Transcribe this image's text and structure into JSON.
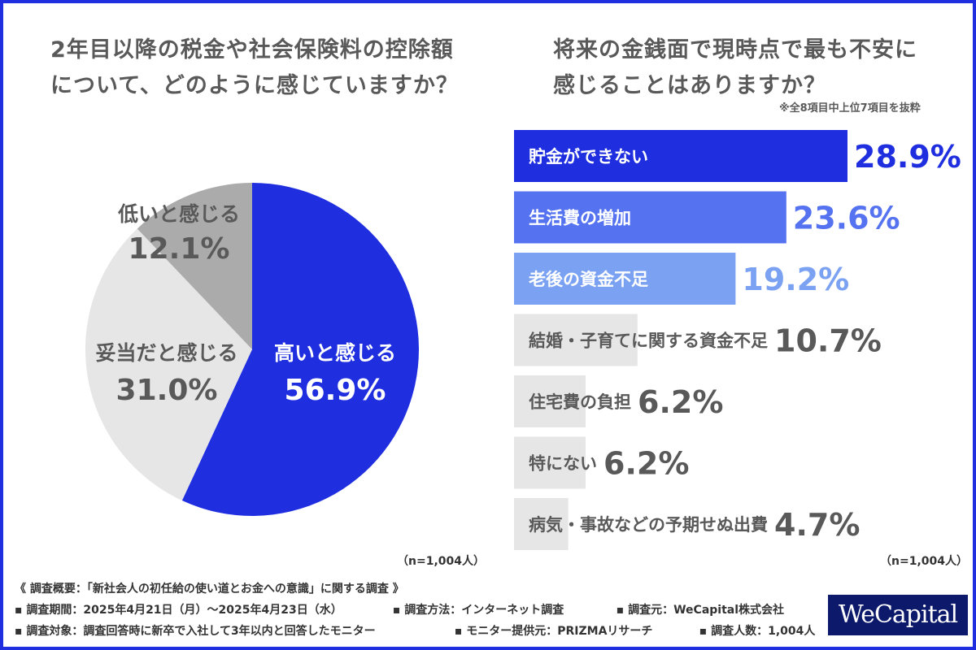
{
  "chart_data": [
    {
      "type": "pie",
      "title": "2年目以降の税金や社会保険料の控除額 について、どのように感じていますか？",
      "title_lines": [
        "2年目以降の税金や社会保険料の控除額",
        "について、どのように感じていますか？"
      ],
      "categories": [
        "高いと感じる",
        "妥当だと感じる",
        "低いと感じる"
      ],
      "values": [
        56.9,
        31.0,
        12.1
      ],
      "value_labels": [
        "56.9%",
        "31.0%",
        "12.1%"
      ],
      "colors": [
        "#1f2fe0",
        "#e6e6e6",
        "#ababab"
      ],
      "label_colors": [
        "#ffffff",
        "#595959",
        "#595959"
      ],
      "sample": "（n=1,004人）"
    },
    {
      "type": "bar",
      "orientation": "horizontal",
      "title": "将来の金銭面で現時点で最も不安に 感じることはありますか？",
      "title_lines": [
        "将来の金銭面で現時点で最も不安に",
        "感じることはありますか？"
      ],
      "note": "※全8項目中上位7項目を抜粋",
      "categories": [
        "貯金ができない",
        "生活費の増加",
        "老後の資金不足",
        "結婚・子育てに関する資金不足",
        "住宅費の負担",
        "特にない",
        "病気・事故などの予期せぬ出費"
      ],
      "values": [
        28.9,
        23.6,
        19.2,
        10.7,
        6.2,
        6.2,
        4.7
      ],
      "value_labels": [
        "28.9%",
        "23.6%",
        "19.2%",
        "10.7%",
        "6.2%",
        "6.2%",
        "4.7%"
      ],
      "bar_colors": [
        "#1f2fe0",
        "#5573f0",
        "#7ba2f2",
        "#e6e6e6",
        "#e6e6e6",
        "#e6e6e6",
        "#e6e6e6"
      ],
      "label_colors": [
        "#ffffff",
        "#ffffff",
        "#ffffff",
        "#595959",
        "#595959",
        "#595959",
        "#595959"
      ],
      "value_colors": [
        "#1f2fe0",
        "#5573f0",
        "#7ba2f2",
        "#595959",
        "#595959",
        "#595959",
        "#595959"
      ],
      "xlim": [
        0,
        28.9
      ],
      "sample": "（n=1,004人）"
    }
  ],
  "footer": {
    "summary": "《 調査概要：「新社会人の初任給の使い道とお金への意識」に関する調査 》",
    "period": "▪ 調査期間：2025年4月21日（月）〜2025年4月23日（水）",
    "method": "▪ 調査方法：インターネット調査",
    "source": "▪ 調査元：WeCapital株式会社",
    "target": "▪ 調査対象：調査回答時に新卒で入社して3年以内と回答したモニター",
    "provider": "▪ モニター提供元：PRIZMAリサーチ",
    "count": "▪ 調査人数：1,004人"
  },
  "logo": "WeCapital"
}
